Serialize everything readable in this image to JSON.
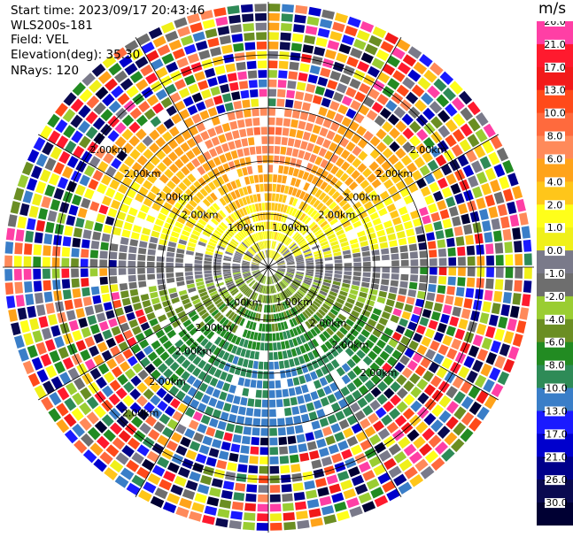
{
  "header": {
    "start_time": "Start time: 2023/09/17 20:43:46",
    "instrument": "WLS200s-181",
    "field": "Field: VEL",
    "elevation": "Elevation(deg): 35.30",
    "nrays": "NRays: 120"
  },
  "colorbar": {
    "unit": "m/s",
    "bins": [
      {
        "label": "26.0",
        "color": "#ff3fa5"
      },
      {
        "label": "21.0",
        "color": "#ff1a2e"
      },
      {
        "label": "17.0",
        "color": "#f21a1a"
      },
      {
        "label": "13.0",
        "color": "#ff4a1a"
      },
      {
        "label": "10.0",
        "color": "#ff6a3d"
      },
      {
        "label": "8.0",
        "color": "#ff8a5a"
      },
      {
        "label": "6.0",
        "color": "#ffa31a"
      },
      {
        "label": "4.0",
        "color": "#ffc61a"
      },
      {
        "label": "2.0",
        "color": "#ffff1a"
      },
      {
        "label": "1.0",
        "color": "#f0f01a"
      },
      {
        "label": "0.0",
        "color": "#7a7a8a"
      },
      {
        "label": "-1.0",
        "color": "#6e6e6e"
      },
      {
        "label": "-2.0",
        "color": "#9acd32"
      },
      {
        "label": "-4.0",
        "color": "#6b8e23"
      },
      {
        "label": "-6.0",
        "color": "#228b22"
      },
      {
        "label": "-8.0",
        "color": "#2e8b57"
      },
      {
        "label": "-10.0",
        "color": "#3a7ec8"
      },
      {
        "label": "-13.0",
        "color": "#1a1aff"
      },
      {
        "label": "-17.0",
        "color": "#0000cd"
      },
      {
        "label": "-21.0",
        "color": "#00008b"
      },
      {
        "label": "-26.0",
        "color": "#0a0a50"
      },
      {
        "label": "-30.0",
        "color": "#000033"
      }
    ]
  },
  "chart_data": {
    "type": "heatmap",
    "projection": "PPI (polar)",
    "field": "VEL",
    "units": "m/s",
    "n_rays": 120,
    "elevation_deg": 35.3,
    "ring_labels": [
      "1.00km",
      "2.00km"
    ],
    "color_scale": [
      -30.0,
      -26.0,
      -21.0,
      -17.0,
      -13.0,
      -10.0,
      -8.0,
      -6.0,
      -4.0,
      -2.0,
      -1.0,
      0.0,
      1.0,
      2.0,
      4.0,
      6.0,
      8.0,
      10.0,
      13.0,
      17.0,
      21.0,
      26.0
    ],
    "pattern": {
      "north_sector_near_range": "positive velocities (2 to 10 m/s)",
      "south_sector_near_range": "negative velocities (-2 to -10 m/s)",
      "east_west_axis": "near 0 m/s",
      "far_range": "noise (random colors)"
    }
  }
}
